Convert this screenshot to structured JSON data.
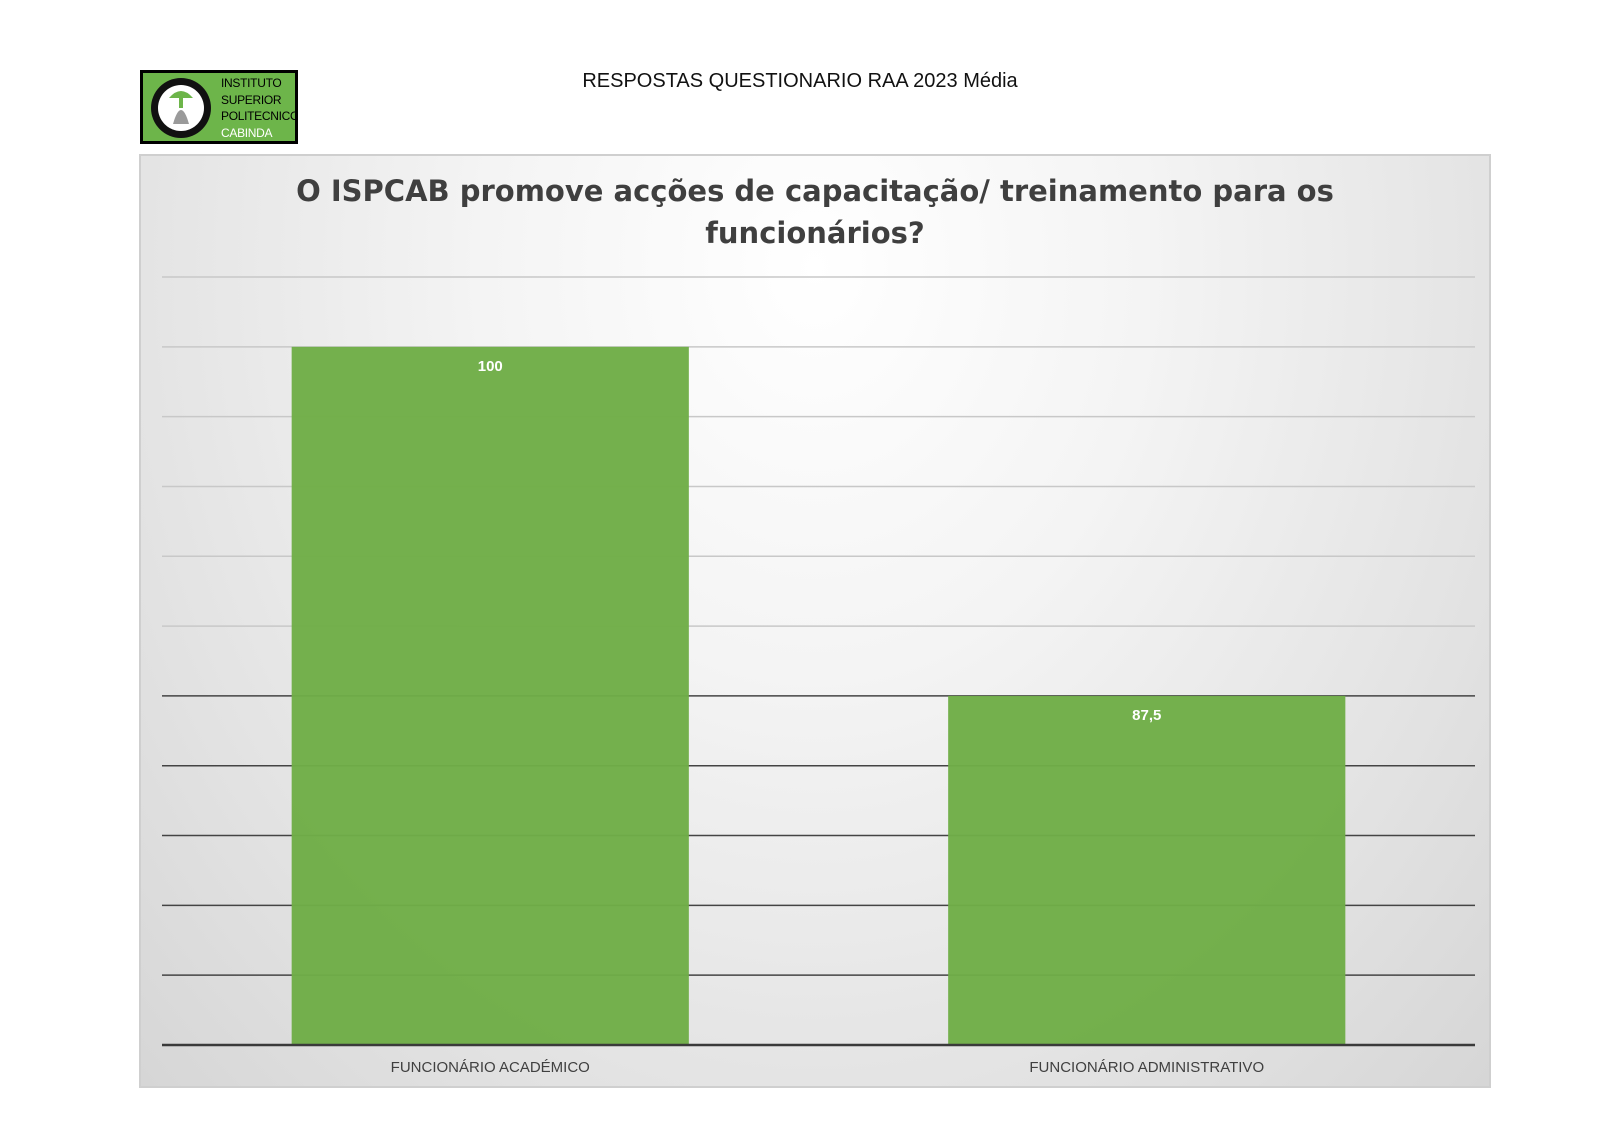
{
  "header": {
    "title": "RESPOSTAS QUESTIONARIO RAA 2023 Média"
  },
  "logo": {
    "lines": [
      "INSTITUTO",
      "SUPERIOR",
      "POLITECNICO",
      "CABINDA"
    ]
  },
  "colors": {
    "bar": "#70ad47",
    "data_label": "#ffffff",
    "grid_light": "#c8c8c8",
    "grid_dark": "#444444",
    "title": "#3f3f3f",
    "category_label": "#404040"
  },
  "chart_data": {
    "type": "bar",
    "title": "O ISPCAB promove acções de capacitação/ treinamento para os funcionários?",
    "categories": [
      "FUNCIONÁRIO ACADÉMICO",
      "FUNCIONÁRIO ADMINISTRATIVO"
    ],
    "values": [
      100,
      87.5
    ],
    "data_labels": [
      "100",
      "87,5"
    ],
    "xlabel": "",
    "ylabel": "",
    "ylim": [
      75,
      102.5
    ],
    "gridline_step": 2.5,
    "grid": true,
    "legend": "none",
    "y_axis_labels_visible": false
  }
}
